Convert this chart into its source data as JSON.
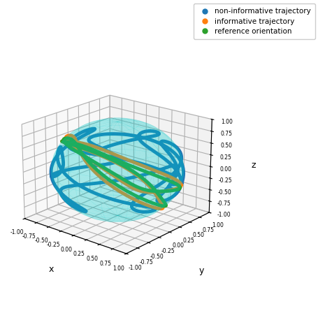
{
  "title": "",
  "xlabel": "x",
  "ylabel": "y",
  "zlabel": "z",
  "xlim": [
    -1,
    1
  ],
  "ylim": [
    -1,
    1
  ],
  "zlim": [
    -1,
    1
  ],
  "zticks": [
    -1.0,
    -0.75,
    -0.5,
    -0.25,
    0.0,
    0.25,
    0.5,
    0.75,
    1.0
  ],
  "yticks": [
    -1.0,
    -0.75,
    -0.5,
    -0.25,
    0.0,
    0.25,
    0.5,
    0.75,
    1.0
  ],
  "xticks": [
    1.0,
    0.75,
    0.5,
    0.25,
    0.0,
    -0.25,
    -0.5,
    -0.75,
    -1.0
  ],
  "sphere_color": "#00CCCC",
  "sphere_alpha": 0.18,
  "non_informative_color": "#1f77b4",
  "informative_color": "#ff7f0e",
  "reference_color": "#2ca02c",
  "line_width": 3.5,
  "legend_labels": [
    "non-informative trajectory",
    "informative trajectory",
    "reference orientation"
  ],
  "azimuth": -50,
  "elevation": 20,
  "figsize": [
    4.56,
    4.48
  ],
  "dpi": 100
}
